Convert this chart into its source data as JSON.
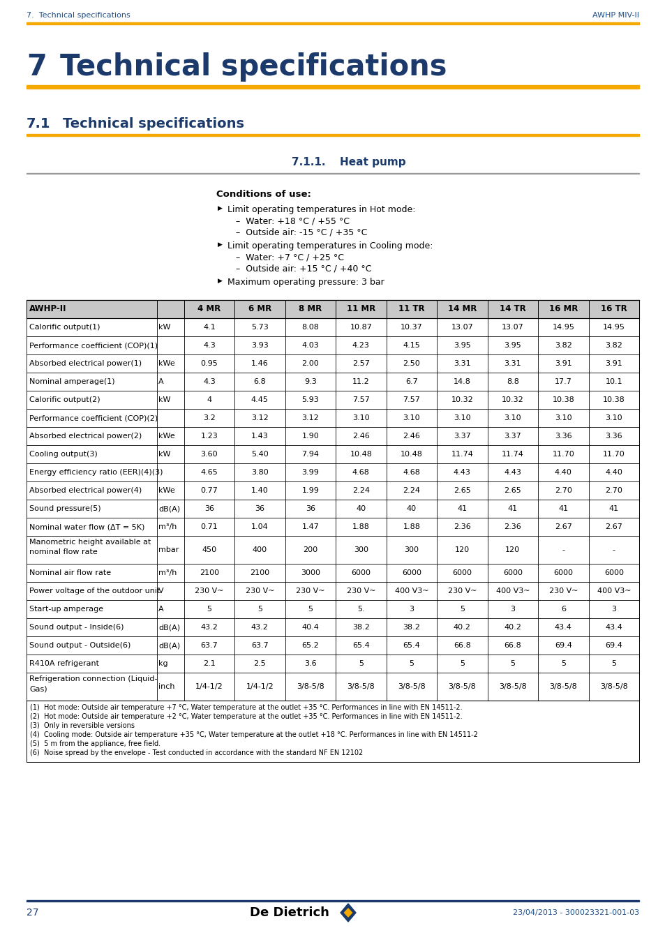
{
  "header_left": "7.  Technical specifications",
  "header_right": "AWHP MIV-II",
  "conditions_title": "Conditions of use:",
  "bullet1": "Limit operating temperatures in Hot mode:",
  "sub1a": "Water: +18 °C / +55 °C",
  "sub1b": "Outside air: -15 °C / +35 °C",
  "bullet2": "Limit operating temperatures in Cooling mode:",
  "sub2a": "Water: +7 °C / +25 °C",
  "sub2b": "Outside air: +15 °C / +40 °C",
  "bullet3": "Maximum operating pressure: 3 bar",
  "table_columns": [
    "AWHP-II",
    "",
    "4 MR",
    "6 MR",
    "8 MR",
    "11 MR",
    "11 TR",
    "14 MR",
    "14 TR",
    "16 MR",
    "16 TR"
  ],
  "table_rows": [
    [
      "Calorific output(1)",
      "kW",
      "4.1",
      "5.73",
      "8.08",
      "10.87",
      "10.37",
      "13.07",
      "13.07",
      "14.95",
      "14.95"
    ],
    [
      "Performance coefficient (COP)(1)",
      "",
      "4.3",
      "3.93",
      "4.03",
      "4.23",
      "4.15",
      "3.95",
      "3.95",
      "3.82",
      "3.82"
    ],
    [
      "Absorbed electrical power(1)",
      "kWe",
      "0.95",
      "1.46",
      "2.00",
      "2.57",
      "2.50",
      "3.31",
      "3.31",
      "3.91",
      "3.91"
    ],
    [
      "Nominal amperage(1)",
      "A",
      "4.3",
      "6.8",
      "9.3",
      "11.2",
      "6.7",
      "14.8",
      "8.8",
      "17.7",
      "10.1"
    ],
    [
      "Calorific output(2)",
      "kW",
      "4",
      "4.45",
      "5.93",
      "7.57",
      "7.57",
      "10.32",
      "10.32",
      "10.38",
      "10.38"
    ],
    [
      "Performance coefficient (COP)(2)",
      "",
      "3.2",
      "3.12",
      "3.12",
      "3.10",
      "3.10",
      "3.10",
      "3.10",
      "3.10",
      "3.10"
    ],
    [
      "Absorbed electrical power(2)",
      "kWe",
      "1.23",
      "1.43",
      "1.90",
      "2.46",
      "2.46",
      "3.37",
      "3.37",
      "3.36",
      "3.36"
    ],
    [
      "Cooling output(3)",
      "kW",
      "3.60",
      "5.40",
      "7.94",
      "10.48",
      "10.48",
      "11.74",
      "11.74",
      "11.70",
      "11.70"
    ],
    [
      "Energy efficiency ratio (EER)(4)(3)",
      "",
      "4.65",
      "3.80",
      "3.99",
      "4.68",
      "4.68",
      "4.43",
      "4.43",
      "4.40",
      "4.40"
    ],
    [
      "Absorbed electrical power(4)",
      "kWe",
      "0.77",
      "1.40",
      "1.99",
      "2.24",
      "2.24",
      "2.65",
      "2.65",
      "2.70",
      "2.70"
    ],
    [
      "Sound pressure(5)",
      "dB(A)",
      "36",
      "36",
      "36",
      "40",
      "40",
      "41",
      "41",
      "41",
      "41"
    ],
    [
      "Nominal water flow (ΔT = 5K)",
      "m³/h",
      "0.71",
      "1.04",
      "1.47",
      "1.88",
      "1.88",
      "2.36",
      "2.36",
      "2.67",
      "2.67"
    ],
    [
      "Manometric height available at\nnominal flow rate",
      "mbar",
      "450",
      "400",
      "200",
      "300",
      "300",
      "120",
      "120",
      "-",
      "-"
    ],
    [
      "Nominal air flow rate",
      "m³/h",
      "2100",
      "2100",
      "3000",
      "6000",
      "6000",
      "6000",
      "6000",
      "6000",
      "6000"
    ],
    [
      "Power voltage of the outdoor unit",
      "V",
      "230 V~",
      "230 V~",
      "230 V~",
      "230 V~",
      "400 V3~",
      "230 V~",
      "400 V3~",
      "230 V~",
      "400 V3~"
    ],
    [
      "Start-up amperage",
      "A",
      "5",
      "5",
      "5",
      "5.",
      "3",
      "5",
      "3",
      "6",
      "3"
    ],
    [
      "Sound output - Inside(6)",
      "dB(A)",
      "43.2",
      "43.2",
      "40.4",
      "38.2",
      "38.2",
      "40.2",
      "40.2",
      "43.4",
      "43.4"
    ],
    [
      "Sound output - Outside(6)",
      "dB(A)",
      "63.7",
      "63.7",
      "65.2",
      "65.4",
      "65.4",
      "66.8",
      "66.8",
      "69.4",
      "69.4"
    ],
    [
      "R410A refrigerant",
      "kg",
      "2.1",
      "2.5",
      "3.6",
      "5",
      "5",
      "5",
      "5",
      "5",
      "5"
    ],
    [
      "Refrigeration connection (Liquid-\nGas)",
      "inch",
      "1/4-1/2",
      "1/4-1/2",
      "3/8-5/8",
      "3/8-5/8",
      "3/8-5/8",
      "3/8-5/8",
      "3/8-5/8",
      "3/8-5/8",
      "3/8-5/8"
    ]
  ],
  "footnotes": [
    "(1)  Hot mode: Outside air temperature +7 °C, Water temperature at the outlet +35 °C. Performances in line with EN 14511-2.",
    "(2)  Hot mode: Outside air temperature +2 °C, Water temperature at the outlet +35 °C. Performances in line with EN 14511-2.",
    "(3)  Only in reversible versions",
    "(4)  Cooling mode: Outside air temperature +35 °C, Water temperature at the outlet +18 °C. Performances in line with EN 14511-2",
    "(5)  5 m from the appliance, free field.",
    "(6)  Noise spread by the envelope - Test conducted in accordance with the standard NF EN 12102"
  ],
  "footer_page": "27",
  "footer_date": "23/04/2013 - 300023321-001-03",
  "orange_color": "#F5A800",
  "blue_color": "#1B3A6B",
  "header_blue": "#1B4F8A"
}
